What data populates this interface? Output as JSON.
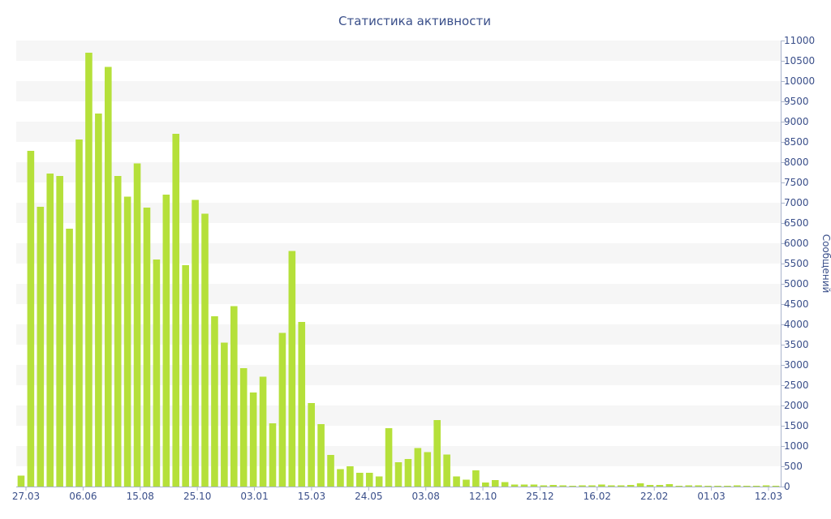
{
  "chart_data": {
    "type": "bar",
    "title": "Статистика активности",
    "ylabel": "Сообщений",
    "xlabel": "",
    "ylim": [
      0,
      11000
    ],
    "y_ticks": [
      0,
      500,
      1000,
      1500,
      2000,
      2500,
      3000,
      3500,
      4000,
      4500,
      5000,
      5500,
      6000,
      6500,
      7000,
      7500,
      8000,
      8500,
      9000,
      9500,
      10000,
      10500,
      11000
    ],
    "x_tick_labels": [
      "27.03",
      "06.06",
      "15.08",
      "25.10",
      "03.01",
      "15.03",
      "24.05",
      "03.08",
      "12.10",
      "25.12",
      "16.02",
      "22.02",
      "01.03",
      "12.03"
    ],
    "grid": "horizontal alternating bands",
    "bar_color": "#b5e03a",
    "band_color": "#f6f6f6",
    "text_color": "#3a4f8a",
    "values": [
      270,
      8280,
      6900,
      7720,
      7660,
      6360,
      8560,
      10700,
      9200,
      10350,
      7660,
      7150,
      7970,
      6880,
      5600,
      7200,
      8700,
      5460,
      7070,
      6730,
      4200,
      3550,
      4450,
      2920,
      2320,
      2710,
      1560,
      3790,
      5810,
      4060,
      2060,
      1540,
      780,
      430,
      500,
      340,
      340,
      250,
      1440,
      600,
      680,
      950,
      850,
      1640,
      790,
      250,
      170,
      400,
      100,
      160,
      110,
      50,
      50,
      50,
      30,
      40,
      30,
      20,
      30,
      30,
      50,
      30,
      30,
      40,
      80,
      40,
      40,
      60,
      20,
      30,
      30,
      20,
      20,
      20,
      30,
      20,
      20,
      30,
      20
    ]
  }
}
